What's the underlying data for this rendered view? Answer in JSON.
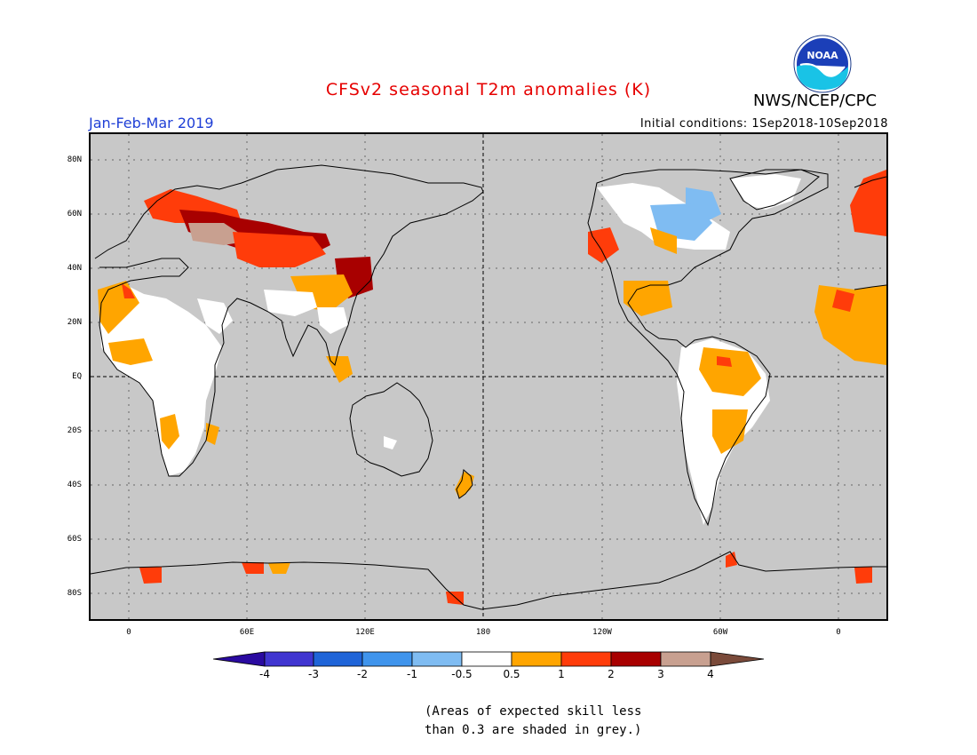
{
  "header": {
    "title": "CFSv2 seasonal T2m anomalies (K)",
    "agency": "NWS/NCEP/CPC",
    "logo_text": "NOAA",
    "period": "Jan-Feb-Mar 2019",
    "initial_conditions": "Initial conditions: 1Sep2018-10Sep2018"
  },
  "map": {
    "lat_labels": [
      "80N",
      "60N",
      "40N",
      "20N",
      "EQ",
      "20S",
      "40S",
      "60S",
      "80S"
    ],
    "lon_labels": [
      "0",
      "60E",
      "120E",
      "180",
      "120W",
      "60W",
      "0"
    ],
    "background_color": "#c8c8c8"
  },
  "colorbar": {
    "labels": [
      "-4",
      "-3",
      "-2",
      "-1",
      "-0.5",
      "0.5",
      "1",
      "2",
      "3",
      "4"
    ],
    "colors": [
      "#2a0aa0",
      "#4035d0",
      "#1f64d8",
      "#3f94ec",
      "#7fbcf2",
      "#ffffff",
      "#ffa500",
      "#ff3c0a",
      "#a80000",
      "#c8a090",
      "#7a4a3a"
    ]
  },
  "footnote": {
    "line1": "(Areas of expected skill less",
    "line2": "than 0.3 are shaded in grey.)"
  }
}
